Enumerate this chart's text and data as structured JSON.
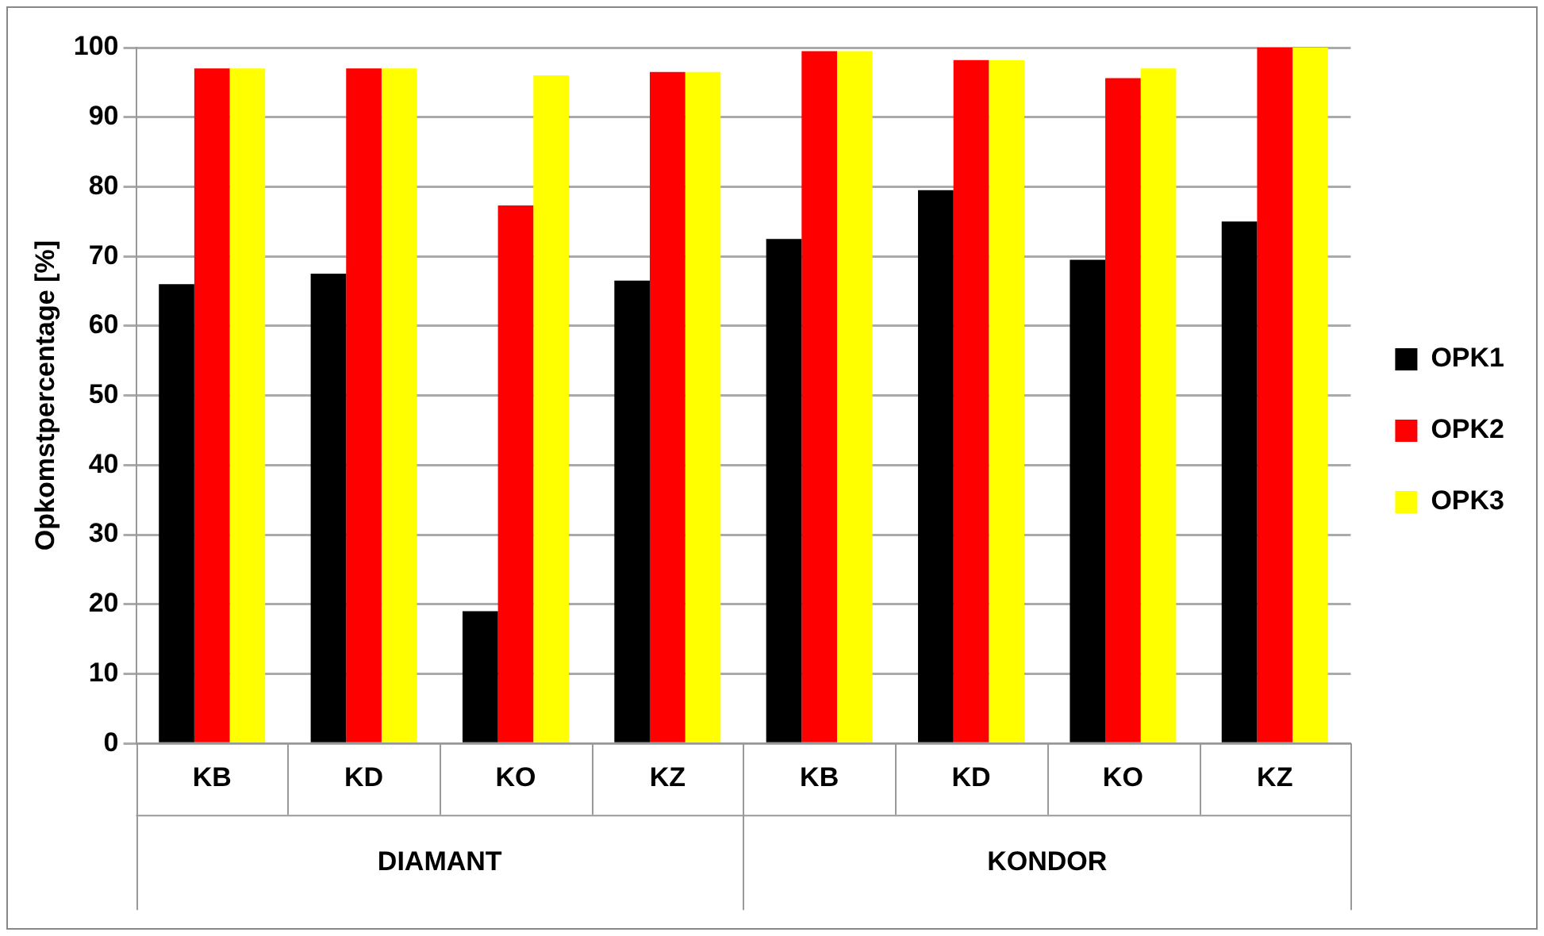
{
  "chart_data": {
    "type": "bar",
    "ylabel": "Opkomstpercentage [%]",
    "categories": [
      "KB",
      "KD",
      "KO",
      "KZ",
      "KB",
      "KD",
      "KO",
      "KZ"
    ],
    "annotations": [
      "DIAMANT",
      "KONDOR"
    ],
    "series": [
      {
        "name": "OPK1",
        "color": "#000000",
        "values": [
          66,
          67.5,
          19,
          66.5,
          72.5,
          79.5,
          69.5,
          75
        ]
      },
      {
        "name": "OPK2",
        "color": "#ff0000",
        "values": [
          97,
          97,
          77.3,
          96.5,
          99.5,
          98.2,
          95.6,
          100
        ]
      },
      {
        "name": "OPK3",
        "color": "#ffff00",
        "values": [
          97,
          97,
          96,
          96.5,
          99.5,
          98.2,
          97,
          100
        ]
      }
    ],
    "ylim": [
      0,
      100
    ],
    "yticks": [
      0,
      10,
      20,
      30,
      40,
      50,
      60,
      70,
      80,
      90,
      100
    ],
    "grid": "y",
    "legend": "right"
  }
}
